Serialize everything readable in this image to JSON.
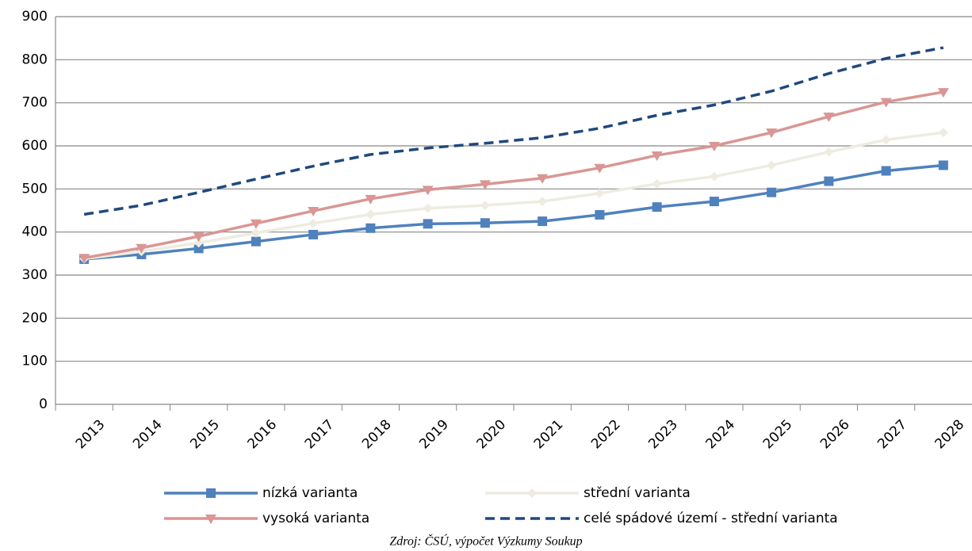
{
  "chart_data": {
    "type": "line",
    "categories": [
      "2013",
      "2014",
      "2015",
      "2016",
      "2017",
      "2018",
      "2019",
      "2020",
      "2021",
      "2022",
      "2023",
      "2024",
      "2025",
      "2026",
      "2027",
      "2028"
    ],
    "series": [
      {
        "name": "nízká varianta",
        "color": "#4f81bd",
        "marker": "square",
        "values": [
          337,
          348,
          362,
          378,
          394,
          409,
          419,
          421,
          425,
          440,
          458,
          471,
          492,
          518,
          542,
          555
        ]
      },
      {
        "name": "střední varianta",
        "color": "#eeece1",
        "marker": "diamond",
        "values": [
          338,
          355,
          375,
          398,
          420,
          441,
          455,
          462,
          471,
          490,
          512,
          529,
          555,
          586,
          614,
          631
        ]
      },
      {
        "name": "vysoká varianta",
        "color": "#d99694",
        "marker": "triangle-down",
        "values": [
          340,
          363,
          390,
          420,
          449,
          477,
          498,
          511,
          525,
          549,
          578,
          600,
          631,
          668,
          702,
          725
        ]
      },
      {
        "name": "celé spádové území - střední varianta",
        "color": "#1f497d",
        "marker": "none",
        "dashed": true,
        "values": [
          441,
          462,
          492,
          523,
          553,
          580,
          595,
          606,
          619,
          641,
          671,
          695,
          727,
          768,
          803,
          828
        ]
      }
    ],
    "ylim": [
      0,
      900
    ],
    "yticks": [
      0,
      100,
      200,
      300,
      400,
      500,
      600,
      700,
      800,
      900
    ],
    "grid": true,
    "legend": "bottom",
    "source": "Zdroj: ČSÚ, výpočet Výzkumy Soukup"
  }
}
